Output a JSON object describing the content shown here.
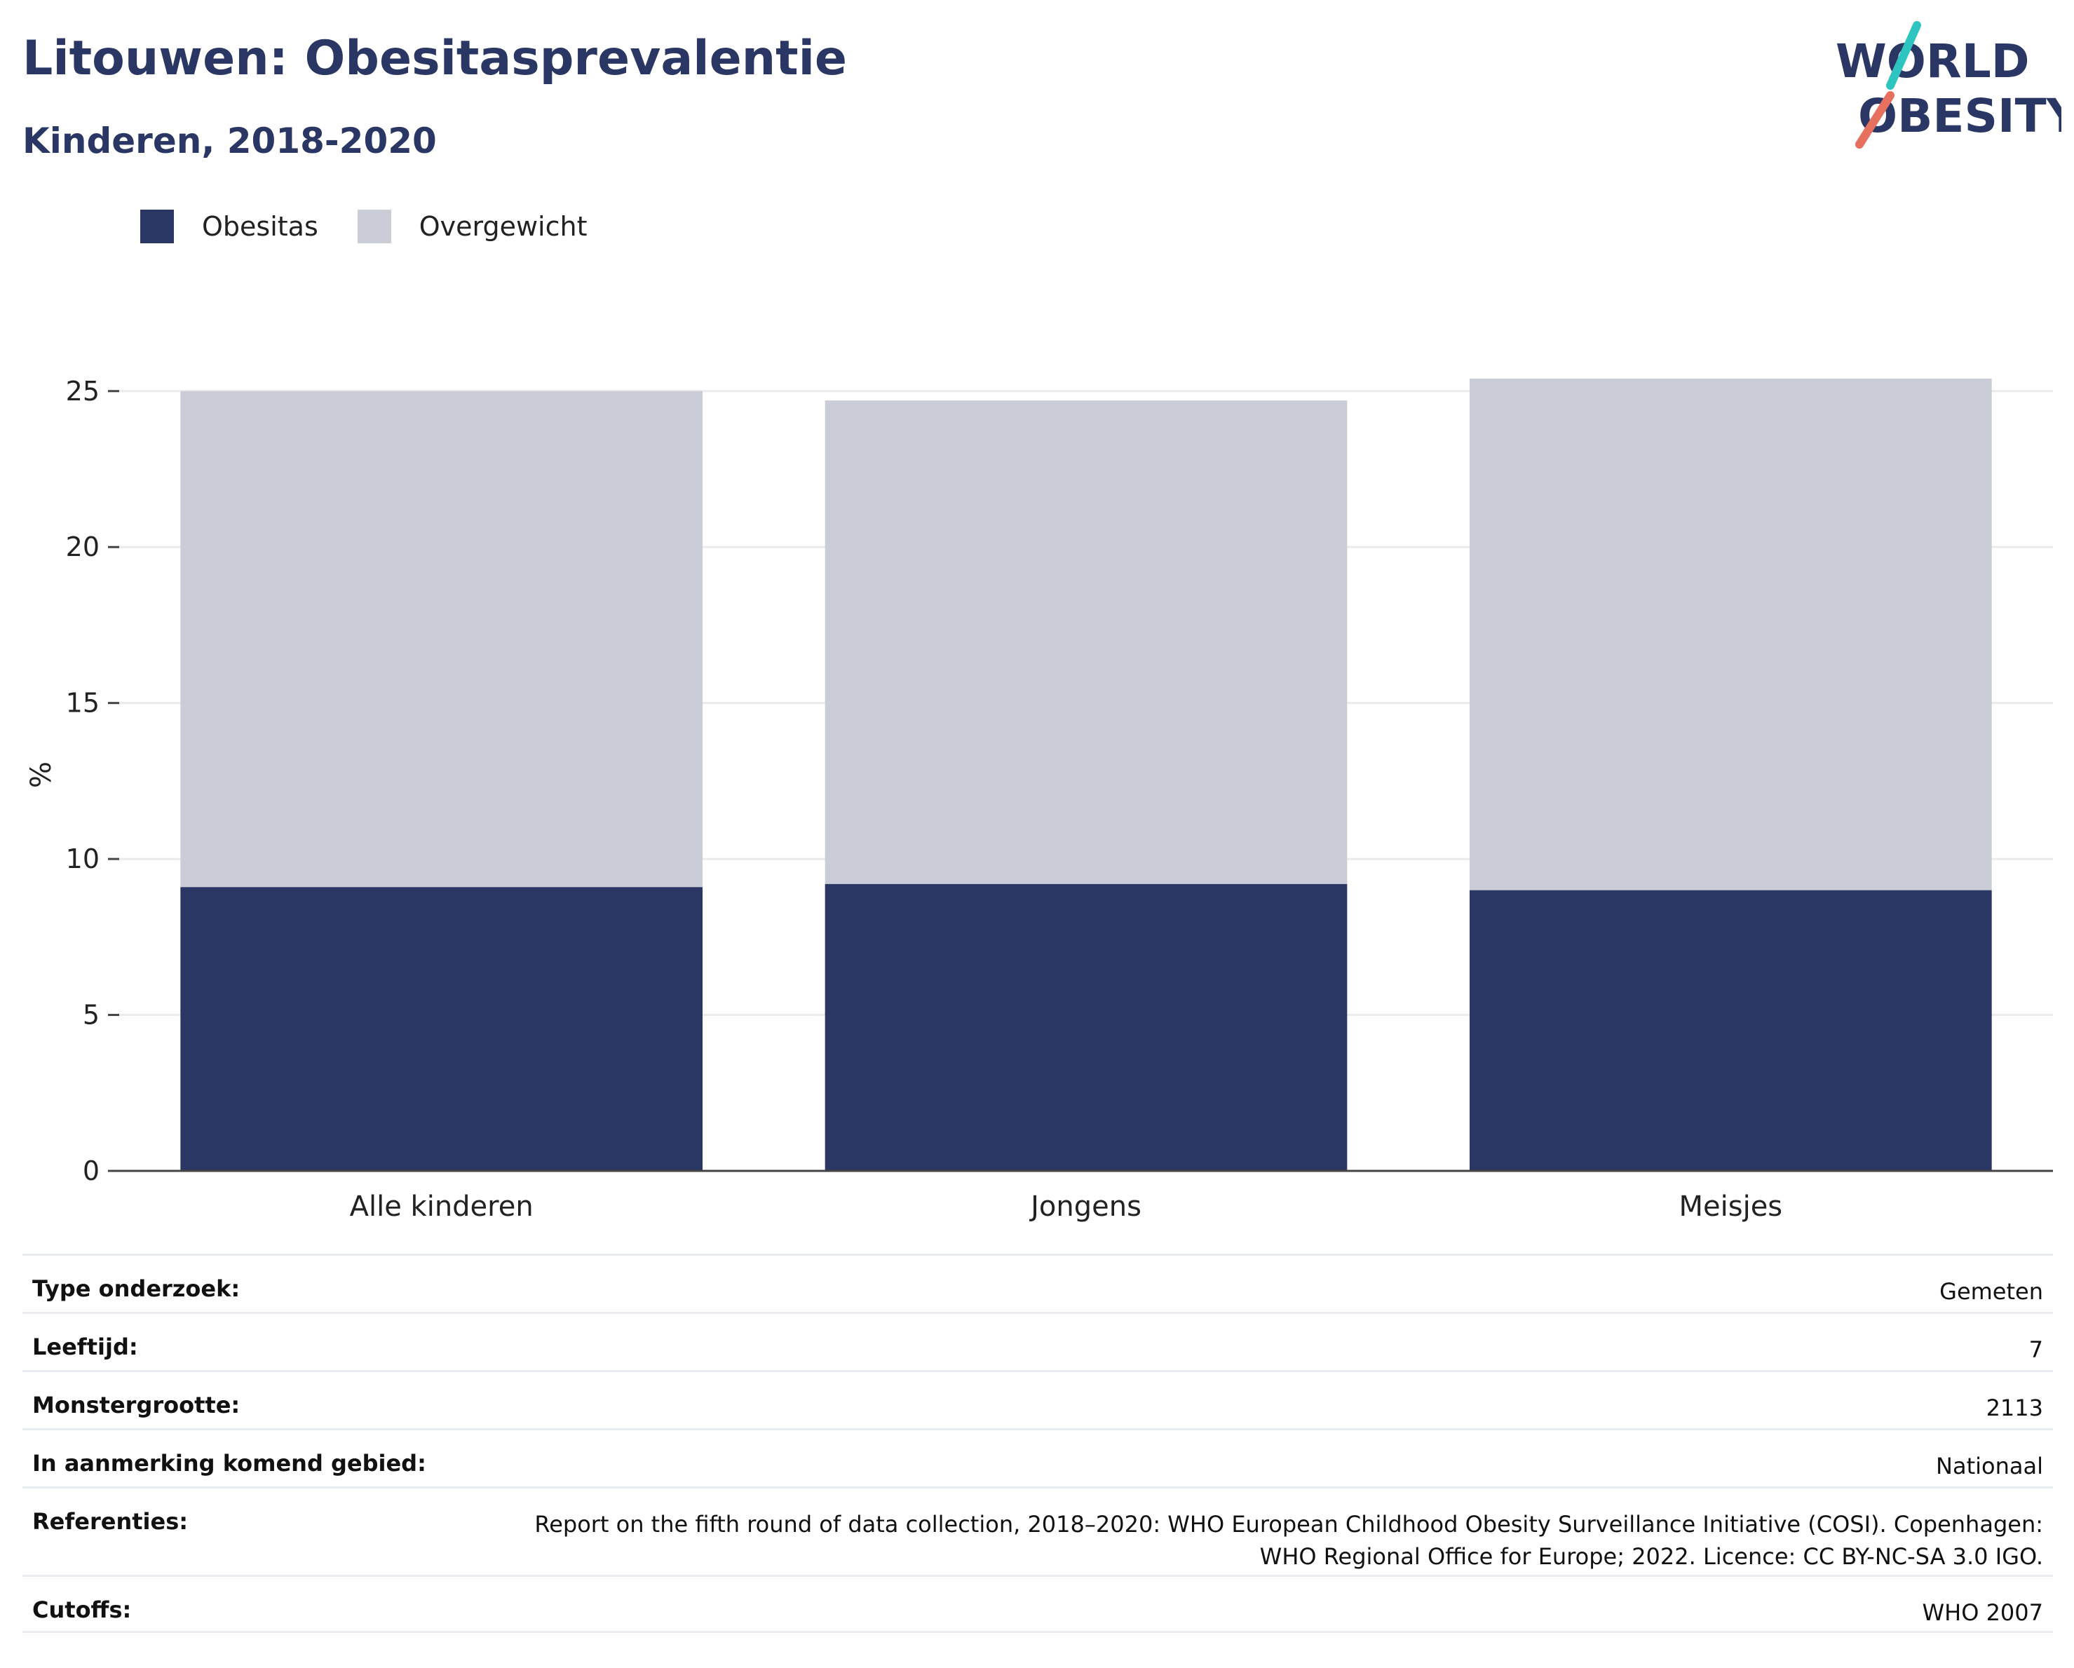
{
  "header": {
    "title": "Litouwen: Obesitasprevalentie",
    "subtitle": "Kinderen, 2018-2020"
  },
  "logo": {
    "line1": "WORLD",
    "line2": "OBESITY",
    "accent_colors": [
      "#2ec4c0",
      "#e8705e"
    ]
  },
  "legend": {
    "items": [
      {
        "label": "Obesitas",
        "color": "#2a3764"
      },
      {
        "label": "Overgewicht",
        "color": "#cacdd8"
      }
    ],
    "placement": "top-left"
  },
  "chart_data": {
    "type": "bar",
    "stacked": true,
    "categories": [
      "Alle kinderen",
      "Jongens",
      "Meisjes"
    ],
    "series": [
      {
        "name": "Obesitas",
        "values": [
          9.1,
          9.2,
          9.0
        ],
        "color": "#2a3764"
      },
      {
        "name": "Overgewicht",
        "values": [
          15.9,
          15.5,
          16.4
        ],
        "color": "#cacdd8"
      }
    ],
    "title": "Litouwen: Obesitasprevalentie",
    "subtitle": "Kinderen, 2018-2020",
    "xlabel": "",
    "ylabel": "%",
    "ylim": [
      0,
      25.4
    ],
    "yticks": [
      0,
      5,
      10,
      15,
      20,
      25
    ],
    "grid": true
  },
  "metadata": {
    "rows": [
      {
        "key": "Type onderzoek:",
        "value": "Gemeten"
      },
      {
        "key": "Leeftijd:",
        "value": "7"
      },
      {
        "key": "Monstergrootte:",
        "value": "2113"
      },
      {
        "key": "In aanmerking komend gebied:",
        "value": "Nationaal"
      },
      {
        "key": "Referenties:",
        "value": "Report on the fifth round of data collection, 2018–2020: WHO European Childhood Obesity Surveillance Initiative (COSI). Copenhagen: WHO Regional Office for Europe; 2022. Licence: CC BY-NC-SA 3.0 IGO."
      },
      {
        "key": "Cutoffs:",
        "value": "WHO 2007"
      }
    ]
  }
}
